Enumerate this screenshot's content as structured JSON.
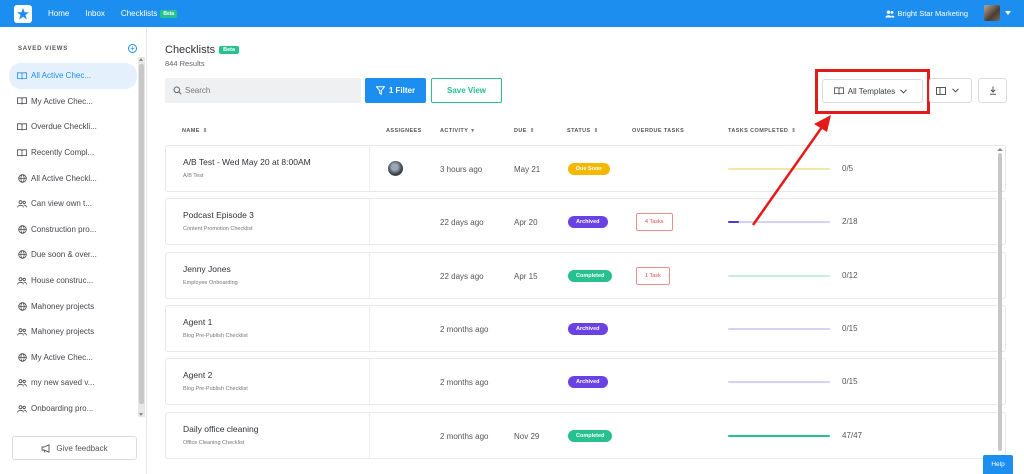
{
  "nav": {
    "links": [
      {
        "label": "Home"
      },
      {
        "label": "Inbox"
      },
      {
        "label": "Checklists",
        "badge": "Beta"
      }
    ],
    "org_name": "Bright Star Marketing"
  },
  "sidebar": {
    "header": "SAVED VIEWS",
    "add_icon": "plus-circle-icon",
    "items": [
      {
        "label": "All Active Chec...",
        "icon": "book-icon",
        "active": true
      },
      {
        "label": "My Active Chec...",
        "icon": "book-icon"
      },
      {
        "label": "Overdue Checkli...",
        "icon": "book-icon"
      },
      {
        "label": "Recently Compl...",
        "icon": "book-icon"
      },
      {
        "label": "All Active Checkl...",
        "icon": "globe-icon"
      },
      {
        "label": "Can view own t...",
        "icon": "users-icon"
      },
      {
        "label": "Construction pro...",
        "icon": "globe-icon"
      },
      {
        "label": "Due soon & over...",
        "icon": "globe-icon"
      },
      {
        "label": "House construc...",
        "icon": "users-icon"
      },
      {
        "label": "Mahoney projects",
        "icon": "globe-icon"
      },
      {
        "label": "Mahoney projects",
        "icon": "users-icon"
      },
      {
        "label": "My Active Chec...",
        "icon": "globe-icon"
      },
      {
        "label": "my new saved v...",
        "icon": "users-icon"
      },
      {
        "label": "Onboarding pro...",
        "icon": "users-icon"
      }
    ],
    "feedback_label": "Give feedback"
  },
  "main": {
    "title": "Checklists",
    "title_badge": "Beta",
    "results": "844 Results",
    "search_placeholder": "Search",
    "filter_label": "1 Filter",
    "save_view_label": "Save View",
    "templates_label": "All Templates",
    "columns": [
      "NAME",
      "ASSIGNEES",
      "ACTIVITY",
      "DUE",
      "STATUS",
      "OVERDUE TASKS",
      "TASKS COMPLETED"
    ],
    "rows": [
      {
        "name": "A/B Test - Wed May 20 at 8:00AM",
        "template": "A/B Test",
        "has_assignee": true,
        "activity": "3 hours ago",
        "due": "May 21",
        "status": "Due Soon",
        "status_color": "#f5b800",
        "overdue": "",
        "completed": "0/5",
        "progress": 0.0,
        "track_color": "#f3e6a6",
        "fill_color": "#f5b800"
      },
      {
        "name": "Podcast Episode 3",
        "template": "Content Promotion Checklist",
        "has_assignee": false,
        "activity": "22 days ago",
        "due": "Apr 20",
        "status": "Archived",
        "status_color": "#6a41e3",
        "overdue": "4 Tasks",
        "completed": "2/18",
        "progress": 0.11,
        "track_color": "#d8cff5",
        "fill_color": "#5a35d6"
      },
      {
        "name": "Jenny Jones",
        "template": "Employee Onboarding",
        "has_assignee": false,
        "activity": "22 days ago",
        "due": "Apr 15",
        "status": "Completed",
        "status_color": "#27c18f",
        "overdue": "1 Task",
        "completed": "0/12",
        "progress": 0.0,
        "track_color": "#c6eee0",
        "fill_color": "#27c18f"
      },
      {
        "name": "Agent 1",
        "template": "Blog Pre-Publish Checklist",
        "has_assignee": false,
        "activity": "2 months ago",
        "due": "",
        "status": "Archived",
        "status_color": "#6a41e3",
        "overdue": "",
        "completed": "0/15",
        "progress": 0.0,
        "track_color": "#d8cff5",
        "fill_color": "#5a35d6"
      },
      {
        "name": "Agent 2",
        "template": "Blog Pre-Publish Checklist",
        "has_assignee": false,
        "activity": "2 months ago",
        "due": "",
        "status": "Archived",
        "status_color": "#6a41e3",
        "overdue": "",
        "completed": "0/15",
        "progress": 0.0,
        "track_color": "#d8cff5",
        "fill_color": "#5a35d6"
      },
      {
        "name": "Daily office cleaning",
        "template": "Office Cleaning Checklist",
        "has_assignee": false,
        "activity": "2 months ago",
        "due": "Nov 29",
        "status": "Completed",
        "status_color": "#27c18f",
        "overdue": "",
        "completed": "47/47",
        "progress": 1.0,
        "track_color": "#c6eee0",
        "fill_color": "#27c18f"
      }
    ]
  },
  "help_label": "Help",
  "colors": {
    "brand": "#1c8ef0",
    "success": "#27c18f",
    "annotation": "#e31b1b"
  }
}
